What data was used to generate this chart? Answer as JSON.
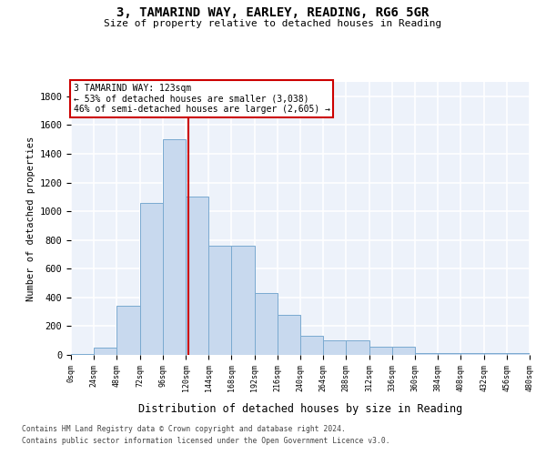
{
  "title_line1": "3, TAMARIND WAY, EARLEY, READING, RG6 5GR",
  "title_line2": "Size of property relative to detached houses in Reading",
  "xlabel": "Distribution of detached houses by size in Reading",
  "ylabel": "Number of detached properties",
  "bar_color": "#c8d9ee",
  "bar_edge_color": "#7aaad0",
  "background_color": "#edf2fa",
  "grid_color": "#ffffff",
  "property_line_color": "#cc0000",
  "property_size": 123,
  "annotation_line1": "3 TAMARIND WAY: 123sqm",
  "annotation_line2": "← 53% of detached houses are smaller (3,038)",
  "annotation_line3": "46% of semi-detached houses are larger (2,605) →",
  "bin_edges": [
    0,
    24,
    48,
    72,
    96,
    120,
    144,
    168,
    192,
    216,
    240,
    264,
    288,
    312,
    336,
    360,
    384,
    408,
    432,
    456,
    480
  ],
  "counts": [
    5,
    50,
    340,
    1060,
    1500,
    1100,
    760,
    760,
    430,
    280,
    130,
    100,
    100,
    55,
    55,
    10,
    10,
    10,
    10,
    10
  ],
  "ylim": [
    0,
    1900
  ],
  "yticks": [
    0,
    200,
    400,
    600,
    800,
    1000,
    1200,
    1400,
    1600,
    1800
  ],
  "xlim": [
    0,
    480
  ],
  "footer_line1": "Contains HM Land Registry data © Crown copyright and database right 2024.",
  "footer_line2": "Contains public sector information licensed under the Open Government Licence v3.0."
}
